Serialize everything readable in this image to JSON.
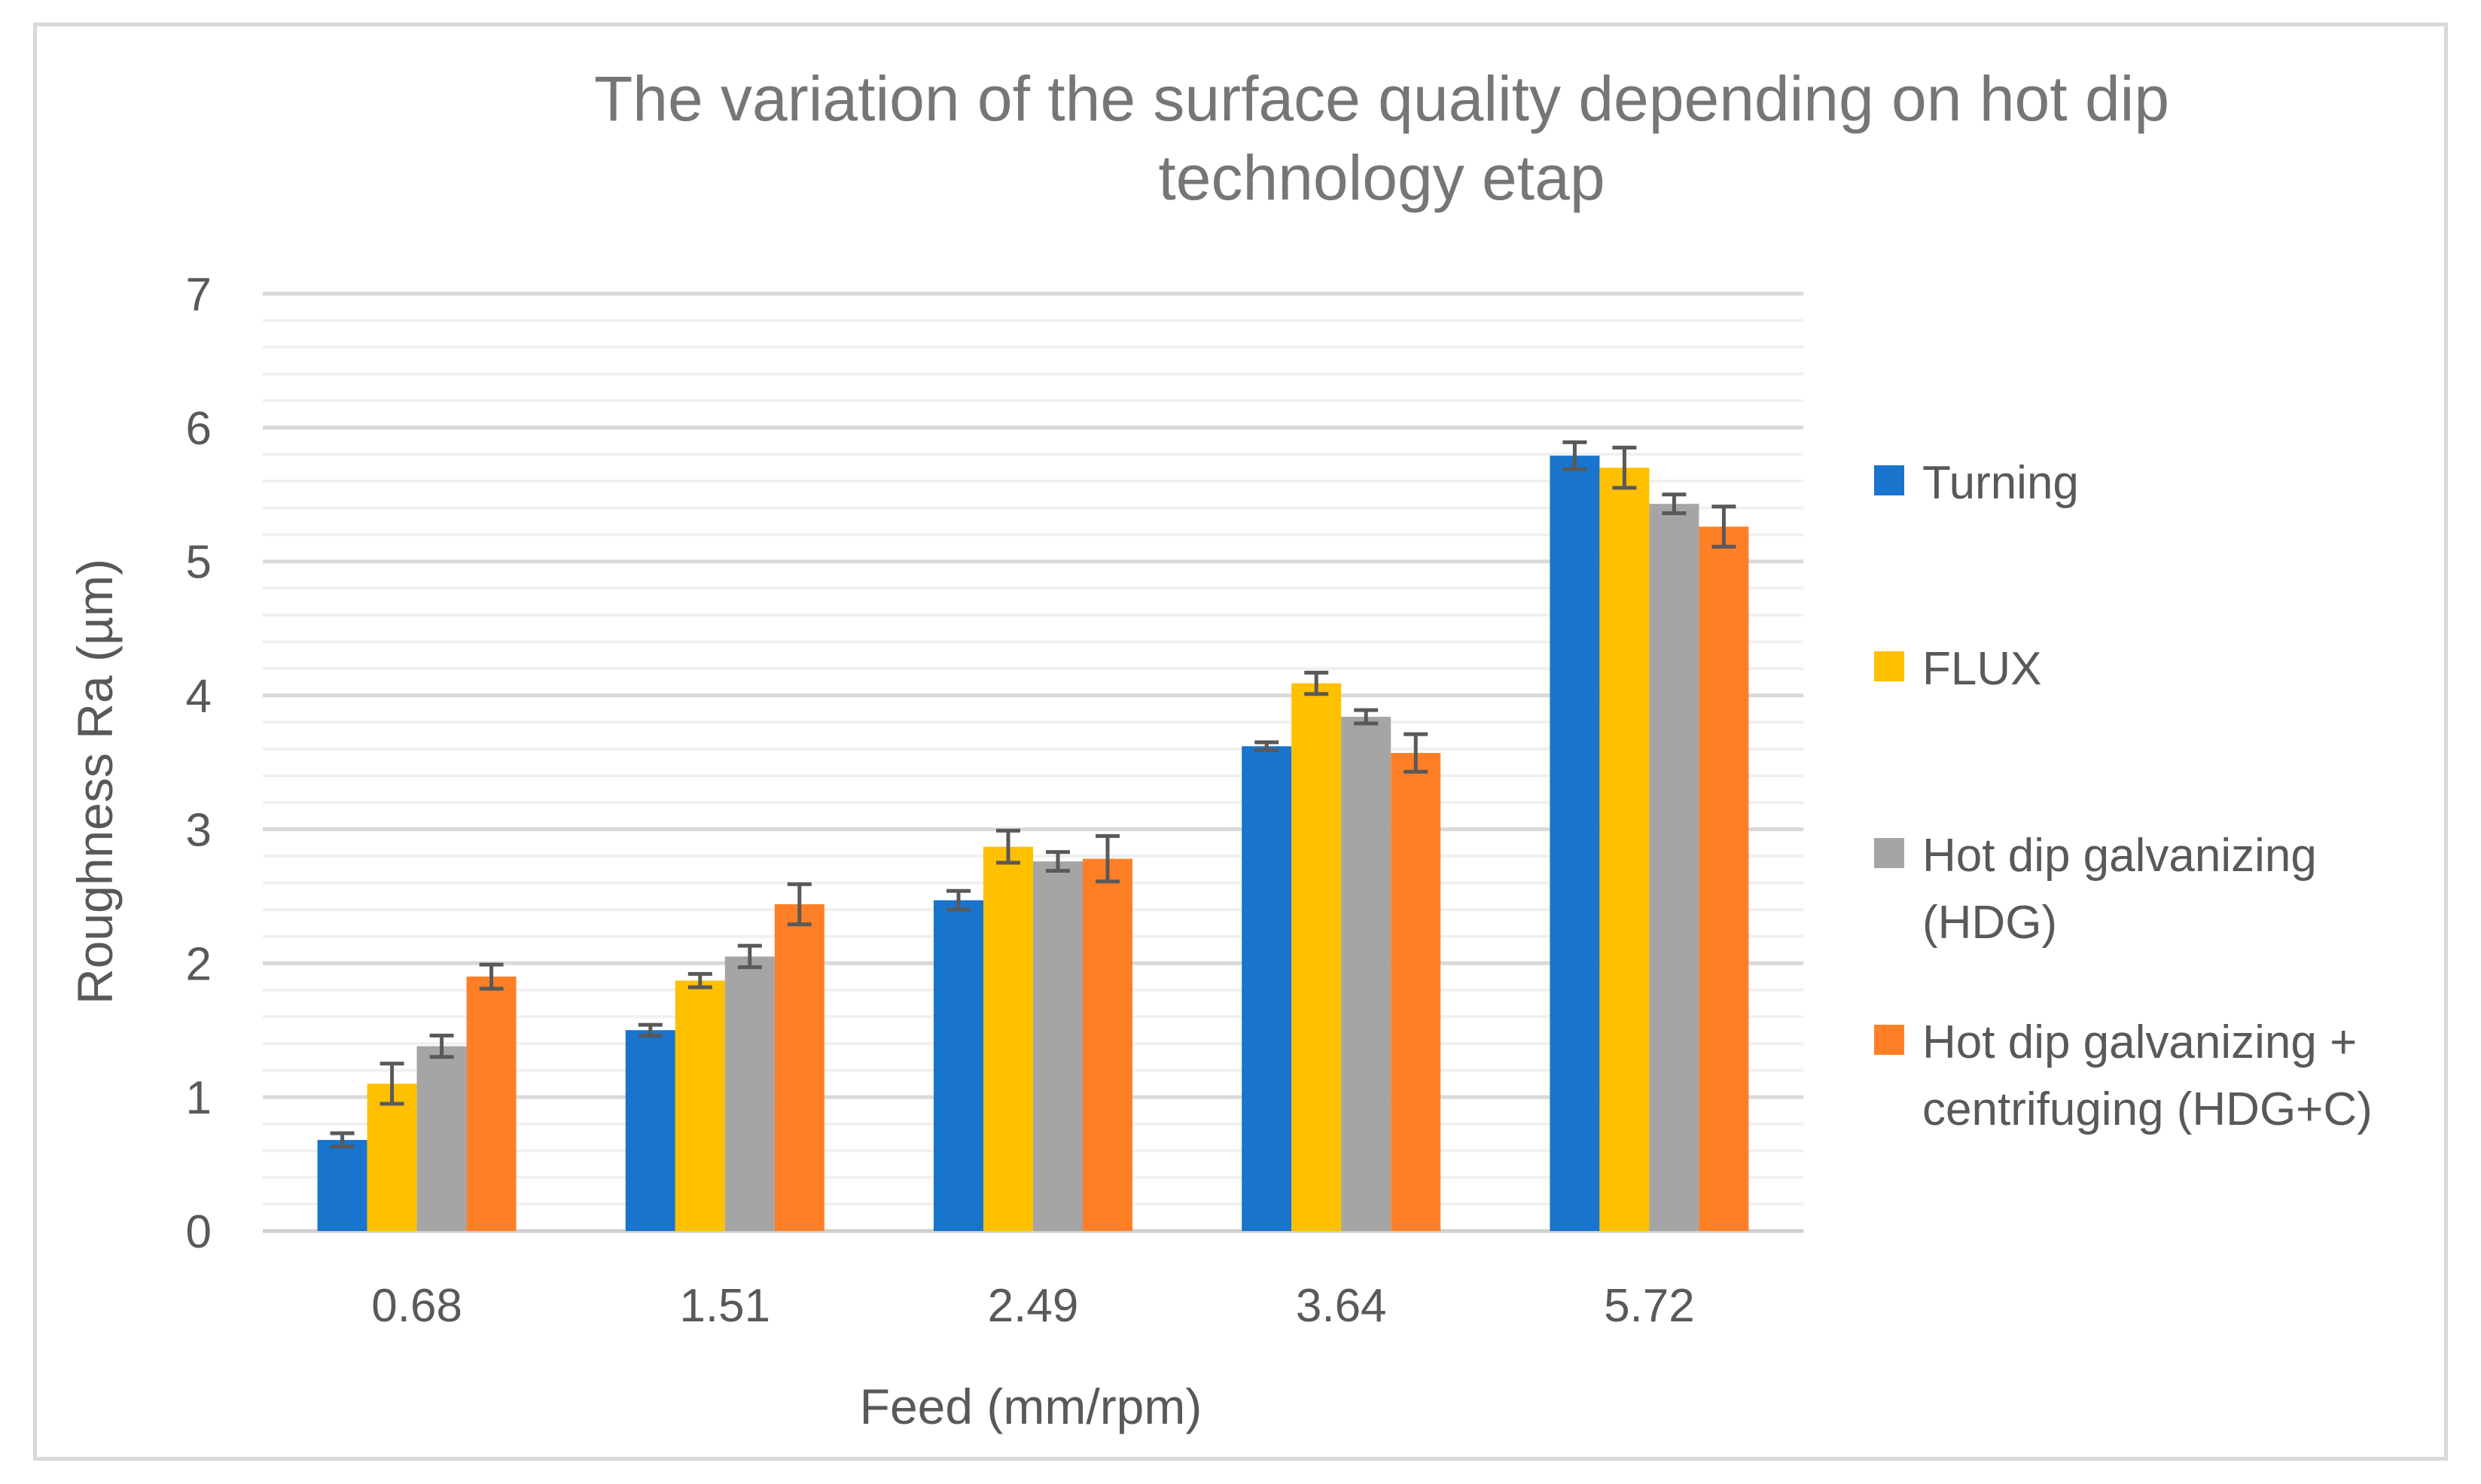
{
  "chart_data": {
    "type": "bar",
    "title_lines": [
      "The variation of the surface quality depending on hot dip",
      "technology etap"
    ],
    "xlabel": "Feed (mm/rpm)",
    "ylabel": "Roughness Ra (µm)",
    "categories": [
      "0.68",
      "1.51",
      "2.49",
      "3.64",
      "5.72"
    ],
    "ylim": [
      0,
      7
    ],
    "yticks": [
      "0",
      "1",
      "2",
      "3",
      "4",
      "5",
      "6",
      "7"
    ],
    "minor_gridlines_per_unit": 5,
    "legend_position": "right",
    "series": [
      {
        "name": "Turning",
        "legend_lines": [
          "Turning"
        ],
        "color": "#1874CD",
        "values": [
          0.68,
          1.5,
          2.47,
          3.62,
          5.79
        ],
        "errors": [
          0.05,
          0.04,
          0.07,
          0.03,
          0.1
        ]
      },
      {
        "name": "FLUX",
        "legend_lines": [
          "FLUX"
        ],
        "color": "#FFC000",
        "values": [
          1.1,
          1.87,
          2.87,
          4.09,
          5.7
        ],
        "errors": [
          0.15,
          0.05,
          0.12,
          0.08,
          0.15
        ]
      },
      {
        "name": "Hot dip galvanizing (HDG)",
        "legend_lines": [
          "Hot dip galvanizing",
          "(HDG)"
        ],
        "color": "#A5A5A5",
        "values": [
          1.38,
          2.05,
          2.76,
          3.84,
          5.43
        ],
        "errors": [
          0.08,
          0.08,
          0.07,
          0.05,
          0.07
        ]
      },
      {
        "name": "Hot dip galvanizing + centrifuging (HDG+C)",
        "legend_lines": [
          "Hot dip galvanizing +",
          "centrifuging (HDG+C)"
        ],
        "color": "#FF7F27",
        "values": [
          1.9,
          2.44,
          2.78,
          3.57,
          5.26
        ],
        "errors": [
          0.09,
          0.15,
          0.17,
          0.14,
          0.15
        ]
      }
    ]
  }
}
